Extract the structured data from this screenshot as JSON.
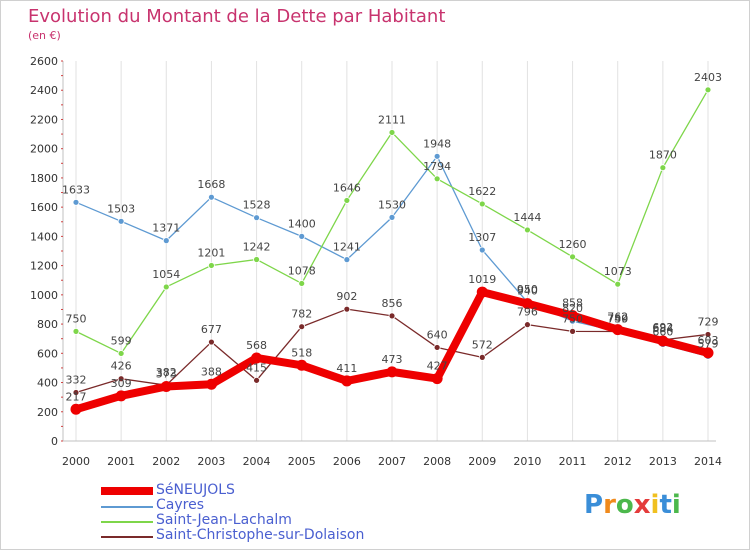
{
  "header": {
    "title": "Evolution du Montant de la Dette par Habitant",
    "subtitle": "(en €)"
  },
  "logo": {
    "text": "Proxiti"
  },
  "chart_data": {
    "type": "line",
    "title": "Evolution du Montant de la Dette par Habitant",
    "ylabel": "(en €)",
    "xlabel": "",
    "x": [
      "2000",
      "2001",
      "2002",
      "2003",
      "2004",
      "2005",
      "2006",
      "2007",
      "2008",
      "2009",
      "2010",
      "2011",
      "2012",
      "2013",
      "2014"
    ],
    "ylim": [
      0,
      2600
    ],
    "yticks": [
      0,
      200,
      400,
      600,
      800,
      1000,
      1200,
      1400,
      1600,
      1800,
      2000,
      2200,
      2400,
      2600
    ],
    "grid": "vertical",
    "legend_position": "bottom-left",
    "series": [
      {
        "name": "SéNEUJOLS",
        "color": "#ee0000",
        "values": [
          217,
          309,
          373,
          388,
          568,
          518,
          411,
          473,
          427,
          1019,
          940,
          858,
          762,
          684,
          603
        ]
      },
      {
        "name": "Cayres",
        "color": "#5e9ad2",
        "values": [
          1633,
          1503,
          1371,
          1668,
          1528,
          1400,
          1241,
          1530,
          1948,
          1307,
          950,
          820,
          750,
          660,
          579
        ]
      },
      {
        "name": "Saint-Jean-Lachalm",
        "color": "#7ed64a",
        "values": [
          750,
          599,
          1054,
          1201,
          1242,
          1078,
          1646,
          2111,
          1794,
          1622,
          1444,
          1260,
          1073,
          1870,
          2403
        ]
      },
      {
        "name": "Saint-Christophe-sur-Dolaison",
        "color": "#7a2a2a",
        "values": [
          332,
          426,
          382,
          677,
          415,
          782,
          902,
          856,
          640,
          572,
          796,
          750,
          749,
          692,
          729
        ]
      }
    ]
  }
}
